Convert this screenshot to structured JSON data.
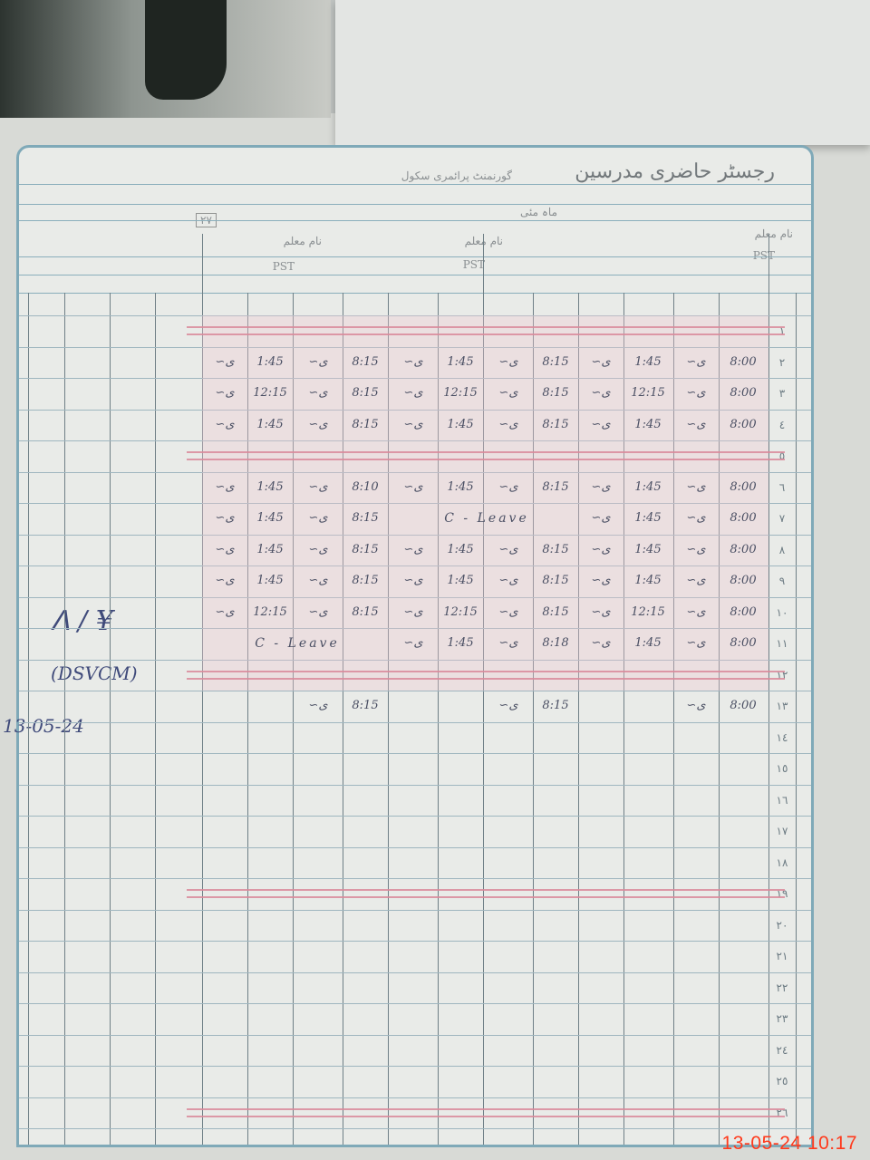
{
  "register": {
    "title": "رجسٹر حاضری مدرسین",
    "subtitle": "گورنمنٹ پرائمری سکول",
    "month_label": "ماہ مئی",
    "page_no": "۲۷",
    "teachers": [
      {
        "name": "نام معلم",
        "label": "PST"
      },
      {
        "name": "نام معلم",
        "label": "PST"
      },
      {
        "name": "نام معلم",
        "label": "PST"
      }
    ],
    "row_numbers": [
      "١",
      "٢",
      "٣",
      "٤",
      "٥",
      "٦",
      "٧",
      "٨",
      "٩",
      "١٠",
      "١١",
      "١٢",
      "١٣",
      "١٤",
      "١٥",
      "١٦",
      "١٧",
      "١٨",
      "١٩",
      "٢٠",
      "٢١",
      "٢٢",
      "٢٣",
      "٢٤",
      "٢٥",
      "٢٦"
    ],
    "holiday_rows": [
      1,
      5,
      12,
      19,
      26
    ],
    "rows": [
      {
        "day": 2,
        "t1": [
          "8:00",
          "1:45"
        ],
        "t2": [
          "8:15",
          "1:45"
        ],
        "t3": [
          "8:15",
          "1:45"
        ]
      },
      {
        "day": 3,
        "t1": [
          "8:00",
          "12:15"
        ],
        "t2": [
          "8:15",
          "12:15"
        ],
        "t3": [
          "8:15",
          "12:15"
        ]
      },
      {
        "day": 4,
        "t1": [
          "8:00",
          "1:45"
        ],
        "t2": [
          "8:15",
          "1:45"
        ],
        "t3": [
          "8:15",
          "1:45"
        ]
      },
      {
        "day": 6,
        "t1": [
          "8:00",
          "1:45"
        ],
        "t2": [
          "8:15",
          "1:45"
        ],
        "t3": [
          "8:10",
          "1:45"
        ]
      },
      {
        "day": 7,
        "t1": [
          "8:00",
          "1:45"
        ],
        "t2": "C - Leave",
        "t3": [
          "8:15",
          "1:45"
        ]
      },
      {
        "day": 8,
        "t1": [
          "8:00",
          "1:45"
        ],
        "t2": [
          "8:15",
          "1:45"
        ],
        "t3": [
          "8:15",
          "1:45"
        ]
      },
      {
        "day": 9,
        "t1": [
          "8:00",
          "1:45"
        ],
        "t2": [
          "8:15",
          "1:45"
        ],
        "t3": [
          "8:15",
          "1:45"
        ]
      },
      {
        "day": 10,
        "t1": [
          "8:00",
          "12:15"
        ],
        "t2": [
          "8:15",
          "12:15"
        ],
        "t3": [
          "8:15",
          "12:15"
        ]
      },
      {
        "day": 11,
        "t1": [
          "8:00",
          "1:45"
        ],
        "t2": [
          "8:18",
          "1:45"
        ],
        "t3": "C - Leave"
      },
      {
        "day": 13,
        "t1": [
          "8:00",
          ""
        ],
        "t2": [
          "8:15",
          ""
        ],
        "t3": [
          "8:15",
          ""
        ]
      }
    ],
    "verification": {
      "date": "13-05-24"
    }
  },
  "camera_timestamp": "13-05-24  10:17",
  "colors": {
    "ink": "#4a4f63",
    "red_line": "#d98a9a",
    "grid": "#7fa9b8",
    "timestamp": "#ff3a1c"
  }
}
